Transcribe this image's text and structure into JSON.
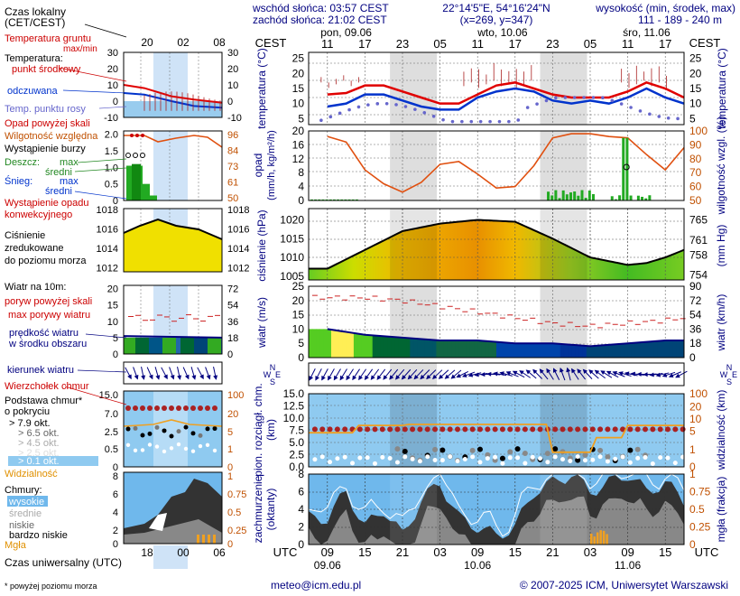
{
  "header": {
    "sunrise": "wschód słońca: 03:57 CEST",
    "sunset": "zachód słońca: 21:02 CEST",
    "coords": "22°14'5\"E, 54°16'24\"N",
    "grid": "(x=269, y=347)",
    "elev_label": "wysokość (min, środek, max)",
    "elev_values": "111 - 189 - 240 m",
    "cest": "CEST",
    "utc": "UTC"
  },
  "days_top": [
    "pon, 09.06",
    "wto, 10.06",
    "śro, 11.06"
  ],
  "days_bottom": [
    "09.06",
    "10.06",
    "11.06"
  ],
  "hours_top": [
    "11",
    "17",
    "23",
    "05",
    "11",
    "17",
    "23",
    "05",
    "11",
    "17"
  ],
  "hours_bottom": [
    "09",
    "15",
    "21",
    "03",
    "09",
    "15",
    "21",
    "03",
    "09",
    "15"
  ],
  "legend": {
    "time_label_1": "Czas lokalny",
    "time_label_2": "(CET/CEST)",
    "legend_hours_top": [
      "20",
      "02",
      "08"
    ],
    "legend_hours_bottom": [
      "18",
      "00",
      "06"
    ],
    "ground_temp": "Temperatura gruntu",
    "maxmin": "max/min",
    "temperature": "Temperatura:",
    "midpoint": "punkt środkowy",
    "felt": "odczuwana",
    "dewpoint": "Temp. punktu rosy",
    "rain_above": "Opad powyżej skali",
    "humidity": "Wilgotność względna",
    "storm": "Wystąpienie burzy",
    "rain": "Deszcz:",
    "max": "max",
    "mean": "średni",
    "snow": "Śnieg:",
    "rain_occurrence_1": "Wystąpienie opadu",
    "rain_occurrence_2": "konwekcyjnego",
    "pressure_1": "Ciśnienie",
    "pressure_2": "zredukowane",
    "pressure_3": "do poziomu morza",
    "wind_10m": "Wiatr na 10m:",
    "gust_above": "poryw powyżej skali",
    "max_gust": "max porywy wiatru",
    "mean_wind_1": "prędkość wiatru",
    "mean_wind_2": "w środku obszaru",
    "wind_dir": "kierunek wiatru",
    "cloud_top": "Wierzchołek chmur",
    "cloud_base_1": "Podstawa chmur*",
    "cloud_base_2": "o pokryciu",
    "okt79": "> 7.9 okt.",
    "okt65": "> 6.5 okt.",
    "okt45": "> 4.5 okt.",
    "okt25": "> 2.5 okt.",
    "okt01": "> 0.1 okt.",
    "visibility": "Widzialność",
    "clouds": "Chmury:",
    "high": "wysokie",
    "medium": "średnie",
    "low": "niskie",
    "very_low": "bardzo niskie",
    "fog": "Mgła",
    "utc_time": "Czas uniwersalny (UTC)",
    "footnote": "* powyżej poziomu morza"
  },
  "axes": {
    "temp_left": "temperatura (°C)",
    "temp_right": "temperatura (°C)",
    "precip_left_1": "opad",
    "precip_left_2": "(mm/h, kg/m²/h)",
    "humid_right": "wilgotność wzgl. (%)",
    "press_left": "ciśnienie (hPa)",
    "press_right": "(mm Hg)",
    "wind_left": "wiatr (m/s)",
    "wind_right": "wiatr (km/h)",
    "cloud_left_1": "pion. rozciągł. chm.",
    "cloud_left_2": "(km)",
    "cloud_right": "widzialność (km)",
    "cover_left_1": "zachmurzenie",
    "cover_left_2": "(oktanty)",
    "cover_right": "mgła (frakcja)"
  },
  "ticks": {
    "temp_left": [
      "25",
      "20",
      "15",
      "10",
      "5"
    ],
    "temp_right": [
      "25",
      "20",
      "15",
      "10",
      "5"
    ],
    "precip_left": [
      "20",
      "16",
      "12",
      "8",
      "4",
      "0"
    ],
    "humid_right": [
      "100",
      "90",
      "80",
      "70",
      "60",
      "50"
    ],
    "press_left": [
      "1020",
      "1015",
      "1010",
      "1005"
    ],
    "press_right": [
      "765",
      "761",
      "758",
      "754"
    ],
    "wind_left": [
      "25",
      "20",
      "15",
      "10",
      "5",
      "0"
    ],
    "wind_right": [
      "90",
      "72",
      "54",
      "36",
      "18",
      "0"
    ],
    "cloud_left": [
      "15.0",
      "12.5",
      "10.0",
      "7.5",
      "5.0",
      "2.5",
      "0.0"
    ],
    "vis_right": [
      "100",
      "20",
      "10",
      "5",
      "1",
      "0"
    ],
    "cover_left": [
      "8",
      "6",
      "4",
      "2",
      "0"
    ],
    "fog_right": [
      "1",
      "0.75",
      "0.5",
      "0.25",
      "0"
    ],
    "leg_temp": [
      "30",
      "20",
      "10",
      "0",
      "-10"
    ],
    "leg_temp_r": [
      "30",
      "20",
      "10",
      "0",
      "-10"
    ],
    "leg_precip": [
      "2.0",
      "1.5",
      "1.0",
      "0.5",
      "0"
    ],
    "leg_humid": [
      "96",
      "84",
      "73",
      "61",
      "50"
    ],
    "leg_press": [
      "1018",
      "1016",
      "1014",
      "1012"
    ],
    "leg_wind": [
      "20",
      "15",
      "10",
      "5",
      "0"
    ],
    "leg_wind_r": [
      "72",
      "54",
      "36",
      "18",
      "0"
    ],
    "leg_cloud": [
      "15.0",
      "7.0",
      "2.5",
      "0.5",
      "0"
    ],
    "leg_vis": [
      "100",
      "20",
      "5",
      "1",
      "0"
    ],
    "leg_cover": [
      "8",
      "6",
      "4",
      "2",
      "0"
    ],
    "leg_fog": [
      "1",
      "0.75",
      "0.5",
      "0.25",
      "0"
    ]
  },
  "footer": {
    "email": "meteo@icm.edu.pl",
    "copyright": "© 2007-2025 ICM, Uniwersytet Warszawski"
  },
  "chart_data": [
    {
      "type": "line",
      "name": "temperature",
      "hours_utc": [
        9,
        12,
        15,
        18,
        21,
        24,
        27,
        30,
        33,
        36,
        39,
        42,
        45,
        48,
        51,
        54,
        57,
        60,
        63,
        66
      ],
      "series": [
        {
          "name": "punkt środkowy",
          "color": "#e00000",
          "values": [
            13,
            13.5,
            16,
            16,
            14,
            12,
            10,
            10,
            13,
            16,
            17,
            15,
            13,
            12,
            12,
            12,
            14,
            17,
            15,
            12
          ]
        },
        {
          "name": "odczuwana",
          "color": "#0033cc",
          "values": [
            9,
            10,
            13,
            13,
            11,
            9,
            8,
            8,
            12,
            14,
            15,
            14,
            11,
            10,
            11,
            10,
            12,
            15,
            12,
            10
          ]
        }
      ],
      "ylim": [
        3,
        27
      ]
    },
    {
      "type": "line",
      "name": "humidity",
      "hours_utc": [
        9,
        12,
        15,
        18,
        21,
        24,
        27,
        30,
        33,
        36,
        39,
        42,
        45,
        48,
        51,
        54,
        57,
        60,
        63,
        66
      ],
      "values": [
        96,
        92,
        72,
        62,
        56,
        63,
        76,
        78,
        69,
        59,
        60,
        75,
        95,
        98,
        98,
        96,
        95,
        83,
        72,
        88
      ],
      "ylim": [
        50,
        100
      ]
    },
    {
      "type": "area",
      "name": "pressure",
      "hours_utc": [
        9,
        15,
        21,
        27,
        33,
        39,
        45,
        51,
        57,
        60,
        63,
        66
      ],
      "values": [
        1007,
        1012,
        1017,
        1019,
        1020,
        1019.5,
        1015,
        1010,
        1008,
        1008.5,
        1010,
        1012
      ],
      "ylim": [
        1004,
        1023
      ]
    },
    {
      "type": "line",
      "name": "wind",
      "hours_utc": [
        9,
        15,
        21,
        27,
        33,
        39,
        45,
        51,
        57,
        63,
        66
      ],
      "series": [
        {
          "name": "max porywy wiatru",
          "values": [
            21,
            21,
            20,
            18,
            16,
            14,
            12,
            11,
            12,
            13,
            14
          ]
        },
        {
          "name": "prędkość wiatru",
          "values": [
            10,
            8,
            7,
            6,
            6,
            5,
            5,
            4,
            5,
            6,
            6
          ]
        }
      ],
      "ylim": [
        0,
        25
      ]
    },
    {
      "type": "area",
      "name": "cloud cover",
      "hours_utc": [
        9,
        12,
        15,
        18,
        21,
        24,
        27,
        30,
        33,
        36,
        39,
        42,
        45,
        48,
        51,
        54,
        57,
        60,
        63,
        66
      ],
      "values": [
        3,
        6,
        2,
        4,
        1,
        5,
        7,
        3,
        2,
        1,
        2,
        6,
        7,
        8,
        6,
        7,
        8,
        6,
        7,
        5
      ],
      "ylim": [
        0,
        8
      ]
    }
  ]
}
